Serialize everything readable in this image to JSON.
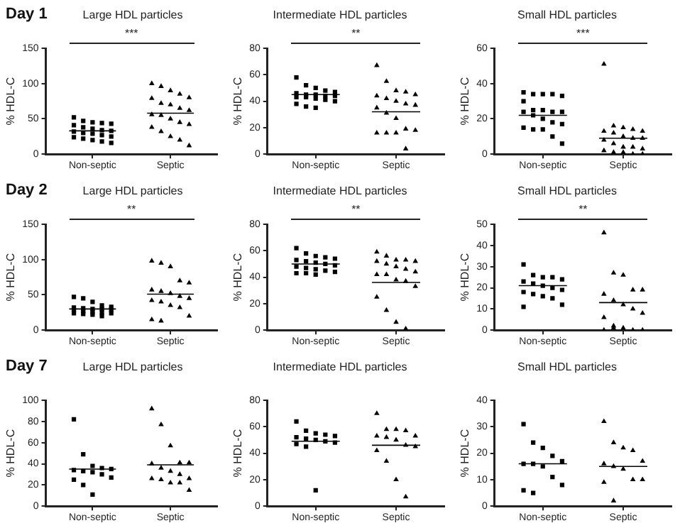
{
  "chart_data": [
    {
      "type": "scatter",
      "subtitle": "Day 1",
      "title": "Large HDL particles",
      "ylabel": "% HDL-C",
      "categories": [
        "Non-septic",
        "Septic"
      ],
      "ylim": [
        0,
        150
      ],
      "yticks": [
        0,
        50,
        100,
        150
      ],
      "grid": false,
      "legend": false,
      "annotations": [
        "***"
      ],
      "series": [
        {
          "type": "scatter",
          "marker": "square",
          "color": "#000000",
          "x": [
            "Non-septic",
            "Non-septic",
            "Non-septic",
            "Non-septic",
            "Non-septic",
            "Non-septic",
            "Non-septic",
            "Non-septic",
            "Non-septic",
            "Non-septic",
            "Non-septic",
            "Non-septic",
            "Non-septic",
            "Non-septic",
            "Non-septic",
            "Non-septic",
            "Non-septic",
            "Non-septic",
            "Non-septic",
            "Non-septic"
          ],
          "values": [
            52,
            47,
            45,
            44,
            43,
            41,
            38,
            36,
            34,
            33,
            32,
            30,
            29,
            27,
            25,
            24,
            22,
            20,
            18,
            16
          ]
        },
        {
          "type": "scatter",
          "marker": "triangle",
          "color": "#000000",
          "x": [
            "Septic",
            "Septic",
            "Septic",
            "Septic",
            "Septic",
            "Septic",
            "Septic",
            "Septic",
            "Septic",
            "Septic",
            "Septic",
            "Septic",
            "Septic",
            "Septic",
            "Septic",
            "Septic",
            "Septic",
            "Septic",
            "Septic",
            "Septic"
          ],
          "values": [
            100,
            96,
            90,
            85,
            80,
            79,
            72,
            70,
            65,
            62,
            56,
            55,
            50,
            45,
            42,
            38,
            32,
            25,
            20,
            12
          ]
        }
      ],
      "ref_lines": [
        {
          "axis": "y",
          "value": 33,
          "color": "#000000"
        },
        {
          "axis": "y",
          "value": 58,
          "color": "#000000"
        }
      ]
    },
    {
      "type": "scatter",
      "title": "Intermediate HDL particles",
      "ylabel": "% HDL-C",
      "categories": [
        "Non-septic",
        "Septic"
      ],
      "ylim": [
        0,
        80
      ],
      "yticks": [
        0,
        20,
        40,
        60,
        80
      ],
      "grid": false,
      "legend": false,
      "annotations": [
        "**"
      ],
      "series": [
        {
          "type": "scatter",
          "marker": "square",
          "color": "#000000",
          "x": [
            "Non-septic",
            "Non-septic",
            "Non-septic",
            "Non-septic",
            "Non-septic",
            "Non-septic",
            "Non-septic",
            "Non-septic",
            "Non-septic",
            "Non-septic",
            "Non-septic",
            "Non-septic",
            "Non-septic",
            "Non-septic",
            "Non-septic",
            "Non-septic",
            "Non-septic",
            "Non-septic"
          ],
          "values": [
            58,
            52,
            50,
            48,
            47,
            46,
            45,
            45,
            44,
            44,
            43,
            43,
            42,
            41,
            40,
            38,
            36,
            35
          ]
        },
        {
          "type": "scatter",
          "marker": "triangle",
          "color": "#000000",
          "x": [
            "Septic",
            "Septic",
            "Septic",
            "Septic",
            "Septic",
            "Septic",
            "Septic",
            "Septic",
            "Septic",
            "Septic",
            "Septic",
            "Septic",
            "Septic",
            "Septic",
            "Septic",
            "Septic",
            "Septic",
            "Septic",
            "Septic"
          ],
          "values": [
            67,
            55,
            48,
            47,
            45,
            44,
            42,
            40,
            38,
            37,
            35,
            31,
            27,
            19,
            18,
            16,
            16,
            16,
            4
          ]
        }
      ],
      "ref_lines": [
        {
          "axis": "y",
          "value": 45,
          "color": "#000000"
        },
        {
          "axis": "y",
          "value": 32,
          "color": "#000000"
        }
      ]
    },
    {
      "type": "scatter",
      "title": "Small HDL particles",
      "ylabel": "% HDL-C",
      "categories": [
        "Non-septic",
        "Septic"
      ],
      "ylim": [
        0,
        60
      ],
      "yticks": [
        0,
        20,
        40,
        60
      ],
      "grid": false,
      "legend": false,
      "annotations": [
        "***"
      ],
      "series": [
        {
          "type": "scatter",
          "marker": "square",
          "color": "#000000",
          "x": [
            "Non-septic",
            "Non-septic",
            "Non-septic",
            "Non-septic",
            "Non-septic",
            "Non-septic",
            "Non-septic",
            "Non-septic",
            "Non-septic",
            "Non-septic",
            "Non-septic",
            "Non-septic",
            "Non-septic",
            "Non-septic",
            "Non-septic",
            "Non-septic",
            "Non-septic",
            "Non-septic",
            "Non-septic",
            "Non-septic"
          ],
          "values": [
            35,
            34,
            34,
            34,
            33,
            30,
            25,
            25,
            24,
            24,
            24,
            22,
            20,
            18,
            17,
            15,
            14,
            14,
            10,
            6
          ]
        },
        {
          "type": "scatter",
          "marker": "triangle",
          "color": "#000000",
          "x": [
            "Septic",
            "Septic",
            "Septic",
            "Septic",
            "Septic",
            "Septic",
            "Septic",
            "Septic",
            "Septic",
            "Septic",
            "Septic",
            "Septic",
            "Septic",
            "Septic",
            "Septic",
            "Septic",
            "Septic",
            "Septic",
            "Septic",
            "Septic"
          ],
          "values": [
            51,
            16,
            15,
            14,
            13,
            13,
            12,
            10,
            9,
            9,
            8,
            6,
            4,
            4,
            3,
            2,
            1,
            1,
            0,
            0
          ]
        }
      ],
      "ref_lines": [
        {
          "axis": "y",
          "value": 22,
          "color": "#000000"
        },
        {
          "axis": "y",
          "value": 9,
          "color": "#000000"
        }
      ]
    },
    {
      "type": "scatter",
      "subtitle": "Day 2",
      "title": "Large HDL particles",
      "ylabel": "% HDL-C",
      "categories": [
        "Non-septic",
        "Septic"
      ],
      "ylim": [
        0,
        150
      ],
      "yticks": [
        0,
        50,
        100,
        150
      ],
      "grid": false,
      "legend": false,
      "annotations": [
        "**"
      ],
      "series": [
        {
          "type": "scatter",
          "marker": "square",
          "color": "#000000",
          "x": [
            "Non-septic",
            "Non-septic",
            "Non-septic",
            "Non-septic",
            "Non-septic",
            "Non-septic",
            "Non-septic",
            "Non-septic",
            "Non-septic",
            "Non-septic",
            "Non-septic",
            "Non-septic",
            "Non-septic",
            "Non-septic",
            "Non-septic",
            "Non-septic",
            "Non-septic",
            "Non-septic",
            "Non-septic"
          ],
          "values": [
            47,
            45,
            40,
            35,
            33,
            32,
            31,
            30,
            30,
            29,
            28,
            27,
            26,
            25,
            24,
            24,
            23,
            22,
            20
          ]
        },
        {
          "type": "scatter",
          "marker": "triangle",
          "color": "#000000",
          "x": [
            "Septic",
            "Septic",
            "Septic",
            "Septic",
            "Septic",
            "Septic",
            "Septic",
            "Septic",
            "Septic",
            "Septic",
            "Septic",
            "Septic",
            "Septic",
            "Septic",
            "Septic",
            "Septic",
            "Septic"
          ],
          "values": [
            98,
            95,
            90,
            70,
            67,
            57,
            55,
            52,
            48,
            45,
            42,
            40,
            35,
            32,
            20,
            15,
            13
          ]
        }
      ],
      "ref_lines": [
        {
          "axis": "y",
          "value": 30,
          "color": "#000000"
        },
        {
          "axis": "y",
          "value": 51,
          "color": "#000000"
        }
      ]
    },
    {
      "type": "scatter",
      "title": "Intermediate HDL particles",
      "ylabel": "% HDL-C",
      "categories": [
        "Non-septic",
        "Septic"
      ],
      "ylim": [
        0,
        80
      ],
      "yticks": [
        0,
        20,
        40,
        60,
        80
      ],
      "grid": false,
      "legend": false,
      "annotations": [
        "**"
      ],
      "series": [
        {
          "type": "scatter",
          "marker": "square",
          "color": "#000000",
          "x": [
            "Non-septic",
            "Non-septic",
            "Non-septic",
            "Non-septic",
            "Non-septic",
            "Non-septic",
            "Non-septic",
            "Non-septic",
            "Non-septic",
            "Non-septic",
            "Non-septic",
            "Non-septic",
            "Non-septic",
            "Non-septic",
            "Non-septic",
            "Non-septic",
            "Non-septic",
            "Non-septic"
          ],
          "values": [
            62,
            58,
            56,
            55,
            54,
            53,
            52,
            51,
            50,
            49,
            48,
            47,
            46,
            45,
            44,
            43,
            43,
            42
          ]
        },
        {
          "type": "scatter",
          "marker": "triangle",
          "color": "#000000",
          "x": [
            "Septic",
            "Septic",
            "Septic",
            "Septic",
            "Septic",
            "Septic",
            "Septic",
            "Septic",
            "Septic",
            "Septic",
            "Septic",
            "Septic",
            "Septic",
            "Septic",
            "Septic",
            "Septic",
            "Septic",
            "Septic",
            "Septic"
          ],
          "values": [
            59,
            56,
            53,
            53,
            52,
            52,
            50,
            48,
            46,
            44,
            42,
            42,
            38,
            37,
            33,
            25,
            15,
            6,
            1
          ]
        }
      ],
      "ref_lines": [
        {
          "axis": "y",
          "value": 50,
          "color": "#000000"
        },
        {
          "axis": "y",
          "value": 36,
          "color": "#000000"
        }
      ]
    },
    {
      "type": "scatter",
      "title": "Small HDL particles",
      "ylabel": "% HDL-C",
      "categories": [
        "Non-septic",
        "Septic"
      ],
      "ylim": [
        0,
        50
      ],
      "yticks": [
        0,
        10,
        20,
        30,
        40,
        50
      ],
      "grid": false,
      "legend": false,
      "annotations": [
        "**"
      ],
      "series": [
        {
          "type": "scatter",
          "marker": "square",
          "color": "#000000",
          "x": [
            "Non-septic",
            "Non-septic",
            "Non-septic",
            "Non-septic",
            "Non-septic",
            "Non-septic",
            "Non-septic",
            "Non-septic",
            "Non-septic",
            "Non-septic",
            "Non-septic",
            "Non-septic",
            "Non-septic",
            "Non-septic",
            "Non-septic",
            "Non-septic"
          ],
          "values": [
            31,
            26,
            25,
            25,
            24,
            23,
            22,
            21,
            20,
            19,
            18,
            17,
            16,
            15,
            12,
            11
          ]
        },
        {
          "type": "scatter",
          "marker": "triangle",
          "color": "#000000",
          "x": [
            "Septic",
            "Septic",
            "Septic",
            "Septic",
            "Septic",
            "Septic",
            "Septic",
            "Septic",
            "Septic",
            "Septic",
            "Septic",
            "Septic",
            "Septic",
            "Septic",
            "Septic",
            "Septic",
            "Septic"
          ],
          "values": [
            46,
            27,
            26,
            19,
            19,
            17,
            14,
            12,
            10,
            8,
            6,
            2,
            1,
            0,
            0,
            0,
            1
          ]
        }
      ],
      "ref_lines": [
        {
          "axis": "y",
          "value": 21,
          "color": "#000000"
        },
        {
          "axis": "y",
          "value": 13,
          "color": "#000000"
        }
      ]
    },
    {
      "type": "scatter",
      "subtitle": "Day 7",
      "title": "Large HDL particles",
      "ylabel": "% HDL-C",
      "categories": [
        "Non-septic",
        "Septic"
      ],
      "ylim": [
        0,
        100
      ],
      "yticks": [
        0,
        20,
        40,
        60,
        80,
        100
      ],
      "grid": false,
      "legend": false,
      "series": [
        {
          "type": "scatter",
          "marker": "square",
          "color": "#000000",
          "x": [
            "Non-septic",
            "Non-septic",
            "Non-septic",
            "Non-septic",
            "Non-septic",
            "Non-septic",
            "Non-septic",
            "Non-septic",
            "Non-septic",
            "Non-septic",
            "Non-septic",
            "Non-septic",
            "Non-septic"
          ],
          "values": [
            82,
            49,
            38,
            36,
            35,
            34,
            33,
            32,
            30,
            27,
            25,
            20,
            11
          ]
        },
        {
          "type": "scatter",
          "marker": "triangle",
          "color": "#000000",
          "x": [
            "Septic",
            "Septic",
            "Septic",
            "Septic",
            "Septic",
            "Septic",
            "Septic",
            "Septic",
            "Septic",
            "Septic",
            "Septic",
            "Septic",
            "Septic",
            "Septic",
            "Septic"
          ],
          "values": [
            92,
            77,
            57,
            41,
            41,
            40,
            36,
            33,
            30,
            26,
            26,
            25,
            22,
            22,
            15
          ]
        }
      ],
      "ref_lines": [
        {
          "axis": "y",
          "value": 35,
          "color": "#000000"
        },
        {
          "axis": "y",
          "value": 39,
          "color": "#000000"
        }
      ]
    },
    {
      "type": "scatter",
      "title": "Intermediate HDL particles",
      "ylabel": "% HDL-C",
      "categories": [
        "Non-septic",
        "Septic"
      ],
      "ylim": [
        0,
        80
      ],
      "yticks": [
        0,
        20,
        40,
        60,
        80
      ],
      "grid": false,
      "legend": false,
      "series": [
        {
          "type": "scatter",
          "marker": "square",
          "color": "#000000",
          "x": [
            "Non-septic",
            "Non-septic",
            "Non-septic",
            "Non-septic",
            "Non-septic",
            "Non-septic",
            "Non-septic",
            "Non-septic",
            "Non-septic",
            "Non-septic",
            "Non-septic",
            "Non-septic",
            "Non-septic"
          ],
          "values": [
            64,
            57,
            55,
            54,
            53,
            52,
            51,
            50,
            49,
            48,
            47,
            45,
            12
          ]
        },
        {
          "type": "scatter",
          "marker": "triangle",
          "color": "#000000",
          "x": [
            "Septic",
            "Septic",
            "Septic",
            "Septic",
            "Septic",
            "Septic",
            "Septic",
            "Septic",
            "Septic",
            "Septic",
            "Septic",
            "Septic",
            "Septic",
            "Septic"
          ],
          "values": [
            70,
            58,
            58,
            57,
            53,
            53,
            52,
            50,
            46,
            45,
            42,
            34,
            20,
            7
          ]
        }
      ],
      "ref_lines": [
        {
          "axis": "y",
          "value": 49,
          "color": "#000000"
        },
        {
          "axis": "y",
          "value": 46,
          "color": "#000000"
        }
      ]
    },
    {
      "type": "scatter",
      "title": "Small HDL particles",
      "ylabel": "% HDL-C",
      "categories": [
        "Non-septic",
        "Septic"
      ],
      "ylim": [
        0,
        40
      ],
      "yticks": [
        0,
        10,
        20,
        30,
        40
      ],
      "grid": false,
      "legend": false,
      "series": [
        {
          "type": "scatter",
          "marker": "square",
          "color": "#000000",
          "x": [
            "Non-septic",
            "Non-septic",
            "Non-septic",
            "Non-septic",
            "Non-septic",
            "Non-septic",
            "Non-septic",
            "Non-septic",
            "Non-septic",
            "Non-septic",
            "Non-septic",
            "Non-septic"
          ],
          "values": [
            31,
            24,
            22,
            19,
            17,
            16,
            16,
            15,
            11,
            8,
            6,
            5
          ]
        },
        {
          "type": "scatter",
          "marker": "triangle",
          "color": "#000000",
          "x": [
            "Septic",
            "Septic",
            "Septic",
            "Septic",
            "Septic",
            "Septic",
            "Septic",
            "Septic",
            "Septic",
            "Septic",
            "Septic",
            "Septic"
          ],
          "values": [
            32,
            24,
            22,
            21,
            17,
            16,
            15,
            14,
            10,
            10,
            9,
            2
          ]
        }
      ],
      "ref_lines": [
        {
          "axis": "y",
          "value": 16,
          "color": "#000000"
        },
        {
          "axis": "y",
          "value": 15,
          "color": "#000000"
        }
      ]
    }
  ]
}
